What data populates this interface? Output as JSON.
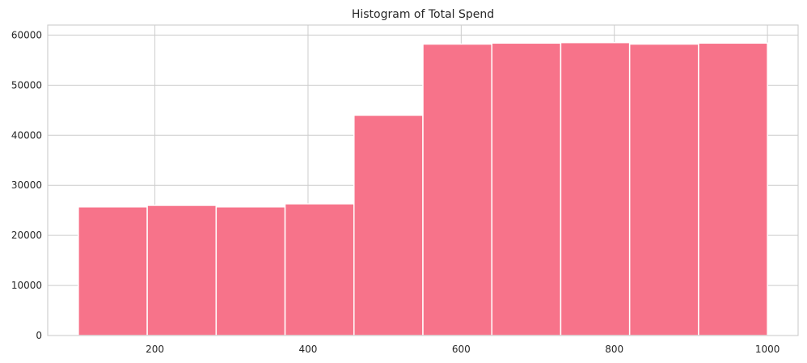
{
  "chart_data": {
    "type": "bar",
    "title": "Histogram of Total Spend",
    "xlabel": "",
    "ylabel": "",
    "bin_edges": [
      100,
      190,
      280,
      370,
      460,
      550,
      640,
      730,
      820,
      910,
      1000
    ],
    "values": [
      25700,
      26000,
      25700,
      26300,
      44000,
      58200,
      58400,
      58500,
      58200,
      58400
    ],
    "xlim": [
      60,
      1040
    ],
    "ylim": [
      0,
      62000
    ],
    "x_ticks": [
      "200",
      "400",
      "600",
      "800",
      "1000"
    ],
    "y_ticks": [
      "0",
      "10000",
      "20000",
      "30000",
      "40000",
      "50000",
      "60000"
    ],
    "grid": true,
    "legend": "none",
    "bar_color": "#f7738a"
  }
}
